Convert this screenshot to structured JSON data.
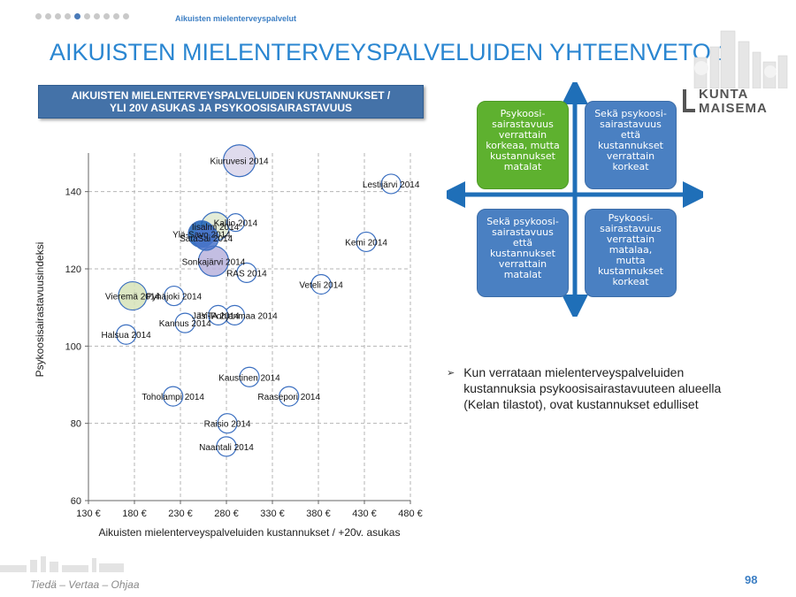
{
  "header": {
    "section_label": "Aikuisten mielenterveyspalvelut",
    "title": "AIKUISTEN MIELENTERVEYSPALVELUIDEN YHTEENVETO 1",
    "subtitle_line1": "AIKUISTEN MIELENTERVEYSPALVELUIDEN KUSTANNUKSET /",
    "subtitle_line2": "YLI 20V ASUKAS JA PSYKOOSISAIRASTAVUUS"
  },
  "logo": {
    "line1": "KUNTA",
    "line2": "MAISEMA"
  },
  "quadrants": {
    "top_left": "Psykoosi-\nsairastavuus\nverrattain\nkorkeaa, mutta\nkustannukset\nmatalat",
    "top_right": "Sekä psykoosi-\nsairastavuus\nettä\nkustannukset\nverrattain\nkorkeat",
    "bottom_left": "Sekä psykoosi-\nsairastavuus\nettä\nkustannukset\nverrattain\nmatalat",
    "bottom_right": "Psykoosi-\nsairastavuus\nverrattain\nmatalaa,\nmutta\nkustannukset\nkorkeat"
  },
  "bullet": "Kun verrataan mielenterveyspalveluiden kustannuksia psykoosisairastavuuteen alueella (Kelan tilastot), ovat kustannukset edulliset",
  "footer": {
    "tagline": "Tiedä – Vertaa – Ohjaa",
    "page": "98"
  },
  "colors": {
    "title": "#2a86d1",
    "subtitle_bg": "#4472a8",
    "quad_green": "#5eb12f",
    "quad_blue": "#4a80c2",
    "arrow": "#1f6fb8"
  },
  "chart_data": {
    "type": "scatter",
    "xlabel": "Aikuisten mielenterveyspalveluiden kustannukset / +20v. asukas",
    "ylabel": "Psykoosisairastavuusindeksi",
    "xlim": [
      130,
      480
    ],
    "ylim": [
      60,
      150
    ],
    "x_ticks": [
      130,
      180,
      230,
      280,
      330,
      380,
      430,
      480
    ],
    "x_tick_labels": [
      "130 €",
      "180 €",
      "230 €",
      "280 €",
      "330 €",
      "380 €",
      "430 €",
      "480 €"
    ],
    "y_ticks": [
      60,
      80,
      100,
      120,
      140
    ],
    "y_tick_labels": [
      "60",
      "80",
      "100",
      "120",
      "140"
    ],
    "grid": true,
    "points": [
      {
        "label": "Kiuruvesi 2014",
        "x": 294,
        "y": 148,
        "size": 18,
        "fill": "#d9d5ea"
      },
      {
        "label": "Lestijärvi 2014",
        "x": 459,
        "y": 142,
        "size": 11,
        "fill": "#ffffff"
      },
      {
        "label": "Iisalmi 2014",
        "x": 268,
        "y": 131,
        "size": 16,
        "fill": "#dfe9d0"
      },
      {
        "label": "Kallio 2014",
        "x": 290,
        "y": 132,
        "size": 10,
        "fill": "#ffffff"
      },
      {
        "label": "Ylä-Savo 2014",
        "x": 253,
        "y": 129,
        "size": 15,
        "fill": "#1a5fb4"
      },
      {
        "label": "SataSai 2014",
        "x": 258,
        "y": 128,
        "size": 14,
        "fill": "#4a74c9"
      },
      {
        "label": "Kemi 2014",
        "x": 432,
        "y": 127,
        "size": 11,
        "fill": "#ffffff"
      },
      {
        "label": "Sonkajärvi 2014",
        "x": 266,
        "y": 122,
        "size": 17,
        "fill": "#b8b3dd"
      },
      {
        "label": "RAS 2014",
        "x": 302,
        "y": 119,
        "size": 11,
        "fill": "#ffffff"
      },
      {
        "label": "Veteli 2014",
        "x": 383,
        "y": 116,
        "size": 11,
        "fill": "#ffffff"
      },
      {
        "label": "Vieremä 2014",
        "x": 178,
        "y": 113,
        "size": 16,
        "fill": "#d6e3b8"
      },
      {
        "label": "Pyhäjoki 2014",
        "x": 223,
        "y": 113,
        "size": 11,
        "fill": "#ffffff"
      },
      {
        "label": "Jäsi-Pohjanmaa 2014",
        "x": 289,
        "y": 108,
        "size": 11,
        "fill": "#ffffff"
      },
      {
        "label": "JYTA 2014",
        "x": 271,
        "y": 108,
        "size": 11,
        "fill": "#ffffff"
      },
      {
        "label": "Kannus 2014",
        "x": 235,
        "y": 106,
        "size": 11,
        "fill": "#ffffff"
      },
      {
        "label": "Halsua 2014",
        "x": 171,
        "y": 103,
        "size": 11,
        "fill": "#ffffff"
      },
      {
        "label": "Kaustinen 2014",
        "x": 305,
        "y": 92,
        "size": 11,
        "fill": "#ffffff"
      },
      {
        "label": "Toholampi 2014",
        "x": 222,
        "y": 87,
        "size": 11,
        "fill": "#ffffff"
      },
      {
        "label": "Raasepori 2014",
        "x": 348,
        "y": 87,
        "size": 11,
        "fill": "#ffffff"
      },
      {
        "label": "Raisio 2014",
        "x": 281,
        "y": 80,
        "size": 11,
        "fill": "#ffffff"
      },
      {
        "label": "Naantali 2014",
        "x": 280,
        "y": 74,
        "size": 11,
        "fill": "#ffffff"
      }
    ]
  }
}
